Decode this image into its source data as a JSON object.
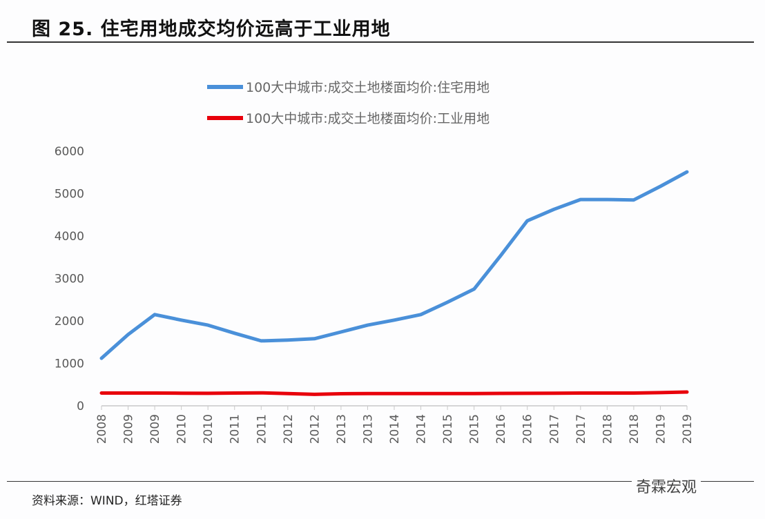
{
  "title": "图 25. 住宅用地成交均价远高于工业用地",
  "source": "资料来源：WIND，红塔证券",
  "watermark": "奇霖宏观",
  "chart_data": {
    "type": "line",
    "title": "图 25. 住宅用地成交均价远高于工业用地",
    "xlabel": "",
    "ylabel": "",
    "ylim": [
      0,
      6000
    ],
    "yticks": [
      "0",
      "1000",
      "2000",
      "3000",
      "4000",
      "5000",
      "6000"
    ],
    "grid": false,
    "legend_position": "top-center",
    "x": [
      "2008",
      "2009",
      "2009",
      "2010",
      "2010",
      "2011",
      "2011",
      "2012",
      "2012",
      "2013",
      "2013",
      "2014",
      "2014",
      "2015",
      "2015",
      "2016",
      "2016",
      "2017",
      "2017",
      "2018",
      "2018",
      "2019",
      "2019"
    ],
    "series": [
      {
        "name": "100大中城市:成交土地楼面均价:住宅用地",
        "color": "#4a90d9",
        "values": [
          1120,
          1680,
          2150,
          2020,
          1900,
          1710,
          1530,
          1550,
          1580,
          1740,
          1900,
          2020,
          2150,
          2440,
          2750,
          3540,
          4360,
          4630,
          4860,
          4860,
          4850,
          5170,
          5510
        ]
      },
      {
        "name": "100大中城市:成交土地楼面均价:工业用地",
        "color": "#e8000b",
        "values": [
          300,
          300,
          300,
          298,
          295,
          300,
          305,
          290,
          270,
          285,
          290,
          290,
          290,
          290,
          290,
          292,
          295,
          298,
          300,
          300,
          300,
          310,
          325
        ]
      }
    ]
  }
}
